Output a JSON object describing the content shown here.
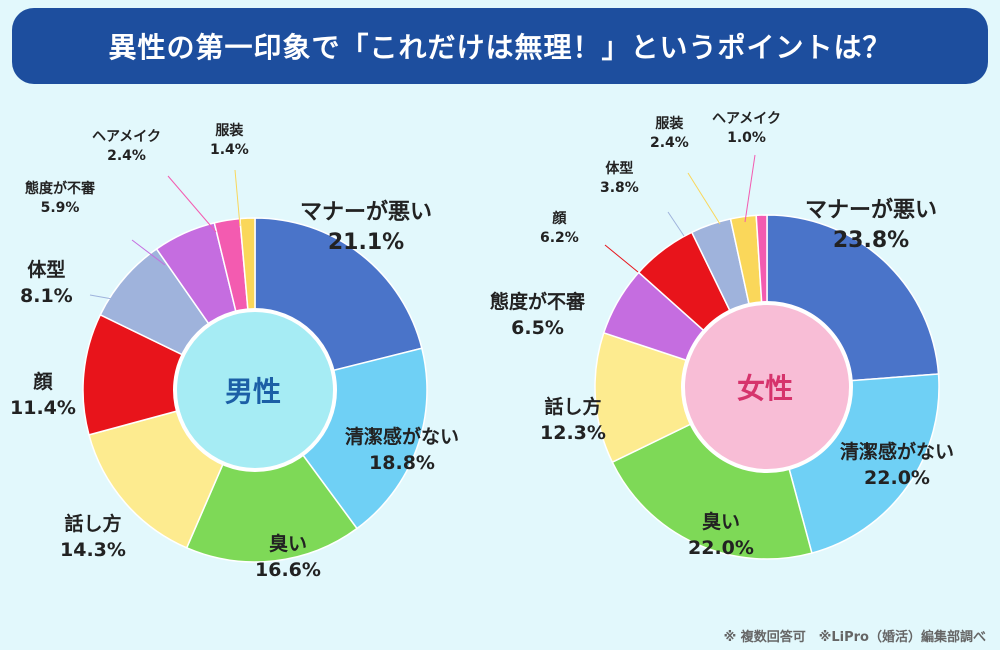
{
  "title": "異性の第一印象で「これだけは無理！」というポイントは？",
  "footer": "※ 複数回答可　※LiPro（婚活）編集部調べ",
  "chart_data": [
    {
      "type": "pie",
      "center_label": "男性",
      "categories": [
        "マナーが悪い",
        "清潔感がない",
        "臭い",
        "話し方",
        "顔",
        "体型",
        "態度が不審",
        "ヘアメイク",
        "服装"
      ],
      "values": [
        21.1,
        18.8,
        16.6,
        14.3,
        11.4,
        8.1,
        5.9,
        2.4,
        1.4
      ],
      "value_labels": [
        "21.1%",
        "18.8%",
        "16.6%",
        "14.3%",
        "11.4%",
        "8.1%",
        "5.9%",
        "2.4%",
        "1.4%"
      ],
      "colors": [
        "#4a74c9",
        "#6fd0f5",
        "#7ed957",
        "#fdeb8f",
        "#e8141b",
        "#9fb3dc",
        "#c56de0",
        "#f35bb0",
        "#fad75a"
      ],
      "center_color": "#a6ecf4",
      "center_text_color": "#1c5fa6"
    },
    {
      "type": "pie",
      "center_label": "女性",
      "categories": [
        "マナーが悪い",
        "清潔感がない",
        "臭い",
        "話し方",
        "態度が不審",
        "顔",
        "体型",
        "服装",
        "ヘアメイク"
      ],
      "values": [
        23.8,
        22.0,
        22.0,
        12.3,
        6.5,
        6.2,
        3.8,
        2.4,
        1.0
      ],
      "value_labels": [
        "23.8%",
        "22.0%",
        "22.0%",
        "12.3%",
        "6.5%",
        "6.2%",
        "3.8%",
        "2.4%",
        "1.0%"
      ],
      "colors": [
        "#4a74c9",
        "#6fd0f5",
        "#7ed957",
        "#fdeb8f",
        "#c56de0",
        "#e8141b",
        "#9fb3dc",
        "#fad75a",
        "#f35bb0"
      ],
      "center_color": "#f8bdd6",
      "center_text_color": "#d6336c"
    }
  ]
}
